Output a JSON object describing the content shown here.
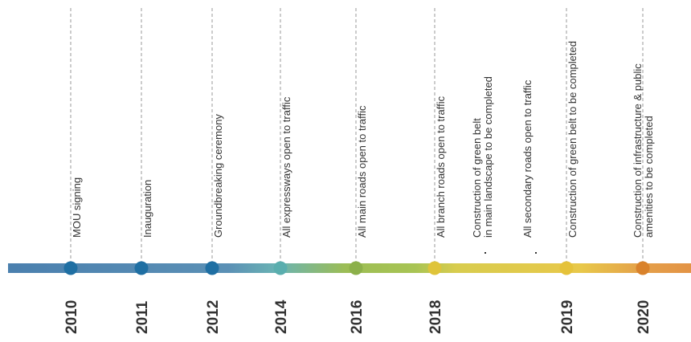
{
  "timeline": {
    "events": [
      {
        "year": "2010",
        "lines": [
          "MOU signing"
        ],
        "color": "#1f6fa3"
      },
      {
        "year": "2011",
        "lines": [
          "Inauguration"
        ],
        "color": "#1f6fa3"
      },
      {
        "year": "2012",
        "lines": [
          "Groundbreaking ceremony"
        ],
        "color": "#1f6fa3"
      },
      {
        "year": "2014",
        "lines": [
          "All expressways open to traffic"
        ],
        "color": "#5aaeae"
      },
      {
        "year": "2016",
        "lines": [
          "All main roads open to traffic"
        ],
        "color": "#8cb04a"
      },
      {
        "year": "2018",
        "lines": [
          "All branch roads open to traffic"
        ],
        "color": "#dfc43a"
      },
      {
        "year": "",
        "lines": [
          "Construction of green belt",
          "in main landscape to be completed"
        ],
        "color": ""
      },
      {
        "year": "",
        "lines": [
          "All secondary roads open to traffic"
        ],
        "color": ""
      },
      {
        "year": "2019",
        "lines": [
          "Construction of green belt to be completed"
        ],
        "color": "#e5c23a"
      },
      {
        "year": "2020",
        "lines": [
          "Construction of infrastructure & public",
          "amenities to be completed"
        ],
        "color": "#d9822b"
      }
    ]
  }
}
